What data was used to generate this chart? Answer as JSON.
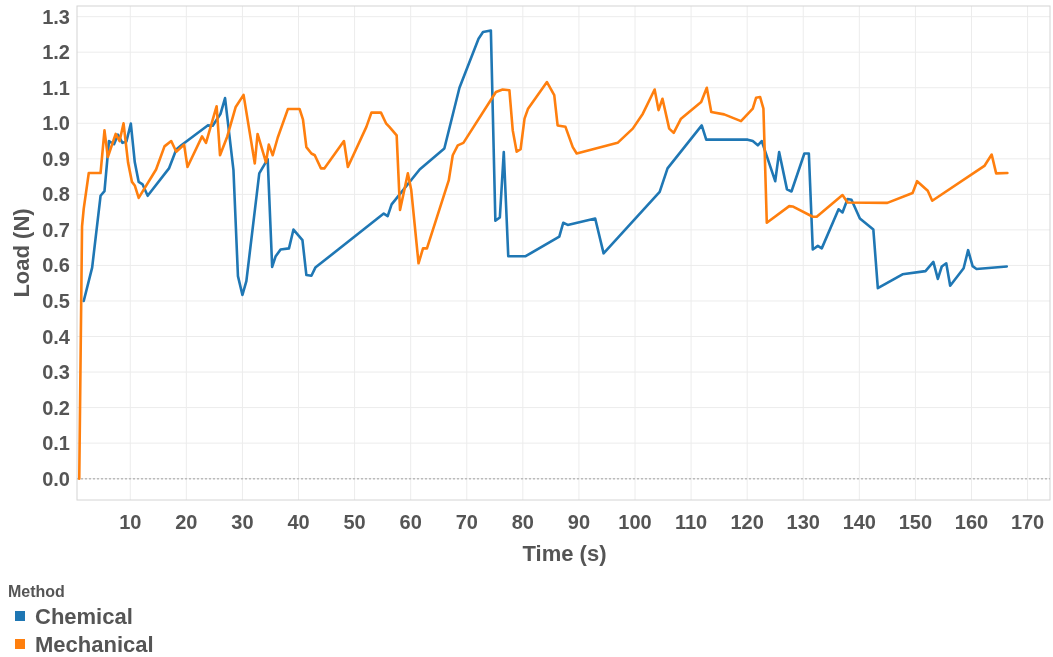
{
  "chart_data": {
    "type": "line",
    "xlabel": "Time (s)",
    "ylabel": "Load (N)",
    "legend_title": "Method",
    "xlim": [
      0.5,
      174
    ],
    "xticks": [
      10,
      20,
      30,
      40,
      50,
      60,
      70,
      80,
      90,
      100,
      110,
      120,
      130,
      140,
      150,
      160,
      170
    ],
    "ylim": [
      -0.06,
      1.33
    ],
    "yticks": [
      {
        "value": 0,
        "label": "0.0"
      },
      0.1,
      0.2,
      0.3,
      0.4,
      0.5,
      0.6,
      0.7,
      0.8,
      0.9,
      {
        "value": 1,
        "label": "1.0"
      },
      1.1,
      1.2,
      1.3
    ],
    "grid": true,
    "legend": "bottom left",
    "line_style": "solid",
    "ref_lines": [
      {
        "axis": "y",
        "value": 0,
        "color": "#bbbbbb",
        "line_style": "dotted"
      }
    ],
    "series": [
      {
        "name": "Chemical",
        "color": "#1f77b4",
        "x": [
          1.7,
          3.2,
          4.7,
          5.4,
          6.2,
          7.1,
          7.8,
          8.6,
          9.3,
          10.1,
          10.8,
          11.5,
          12.2,
          13.1,
          16.9,
          18.2,
          19.1,
          23.8,
          24.7,
          26.1,
          26.9,
          28.4,
          29.2,
          30.0,
          30.7,
          33.0,
          34.5,
          35.3,
          35.9,
          36.8,
          38.3,
          39.1,
          40.7,
          41.4,
          42.3,
          43.0,
          55.2,
          55.9,
          56.6,
          61.6,
          66.0,
          68.7,
          72.1,
          72.9,
          74.3,
          75.1,
          75.9,
          76.6,
          77.4,
          80.5,
          86.5,
          87.2,
          88.0,
          92.9,
          94.4,
          104.4,
          105.8,
          111.9,
          112.7,
          120.1,
          121.0,
          121.9,
          122.6,
          125.0,
          125.7,
          127.1,
          127.9,
          130.2,
          131.0,
          131.7,
          132.6,
          133.3,
          136.3,
          137.0,
          137.9,
          138.6,
          140.1,
          142.5,
          143.3,
          147.7,
          151.8,
          153.2,
          154.0,
          154.7,
          155.5,
          156.2,
          158.6,
          159.4,
          160.2,
          160.9,
          166.3
        ],
        "values": [
          0.5,
          0.594,
          0.796,
          0.809,
          0.95,
          0.941,
          0.968,
          0.945,
          0.948,
          0.999,
          0.891,
          0.835,
          0.828,
          0.796,
          0.873,
          0.926,
          0.938,
          0.994,
          0.993,
          1.027,
          1.071,
          0.868,
          0.57,
          0.517,
          0.556,
          0.859,
          0.899,
          0.596,
          0.625,
          0.645,
          0.648,
          0.701,
          0.671,
          0.573,
          0.571,
          0.594,
          0.746,
          0.739,
          0.772,
          0.87,
          0.929,
          1.1,
          1.238,
          1.257,
          1.261,
          0.726,
          0.735,
          0.919,
          0.626,
          0.626,
          0.681,
          0.72,
          0.714,
          0.732,
          0.634,
          0.807,
          0.873,
          0.994,
          0.954,
          0.954,
          0.95,
          0.938,
          0.95,
          0.837,
          0.919,
          0.814,
          0.808,
          0.915,
          0.915,
          0.645,
          0.655,
          0.648,
          0.758,
          0.749,
          0.787,
          0.785,
          0.732,
          0.701,
          0.536,
          0.575,
          0.584,
          0.61,
          0.562,
          0.597,
          0.606,
          0.543,
          0.592,
          0.643,
          0.598,
          0.59,
          0.597
        ]
      },
      {
        "name": "Mechanical",
        "color": "#ff7f0e",
        "x": [
          0.9,
          1.4,
          1.7,
          2.6,
          4.7,
          5.4,
          6.0,
          7.4,
          8.1,
          8.8,
          9.6,
          10.3,
          10.8,
          11.5,
          14.6,
          16.1,
          17.3,
          18.2,
          19.6,
          20.2,
          22.8,
          23.5,
          25.4,
          26.0,
          27.3,
          28.8,
          30.2,
          32.2,
          32.7,
          34.2,
          34.7,
          35.4,
          36.3,
          38.1,
          40.2,
          40.8,
          41.4,
          42.3,
          42.9,
          44.0,
          44.6,
          48.1,
          48.8,
          52.1,
          53.0,
          54.7,
          55.6,
          56.2,
          57.5,
          58.1,
          59.5,
          60.1,
          61.4,
          62.2,
          62.9,
          66.8,
          67.5,
          68.4,
          69.4,
          75.2,
          76.4,
          77.6,
          78.2,
          78.9,
          79.6,
          80.3,
          80.9,
          84.3,
          85.6,
          86.2,
          87.6,
          88.9,
          89.6,
          96.9,
          99.6,
          101.4,
          103.5,
          104.2,
          104.9,
          106.1,
          106.9,
          108.2,
          111.8,
          112.8,
          113.6,
          115.9,
          118.9,
          121.0,
          121.6,
          122.3,
          122.9,
          123.5,
          127.5,
          128.1,
          131.7,
          132.4,
          137.0,
          137.9,
          145.0,
          149.5,
          150.3,
          152.2,
          153.0,
          162.3,
          163.6,
          164.4,
          166.4
        ],
        "values": [
          0,
          0.71,
          0.76,
          0.86,
          0.86,
          0.98,
          0.905,
          0.97,
          0.95,
          1.0,
          0.89,
          0.835,
          0.825,
          0.79,
          0.87,
          0.935,
          0.95,
          0.92,
          0.94,
          0.877,
          0.963,
          0.945,
          1.048,
          0.91,
          0.963,
          1.046,
          1.08,
          0.887,
          0.97,
          0.89,
          0.94,
          0.91,
          0.96,
          1.04,
          1.04,
          1.01,
          0.933,
          0.915,
          0.91,
          0.873,
          0.873,
          0.95,
          0.877,
          0.99,
          1.03,
          1.03,
          1.0,
          0.99,
          0.966,
          0.756,
          0.859,
          0.812,
          0.606,
          0.648,
          0.648,
          0.84,
          0.91,
          0.938,
          0.945,
          1.088,
          1.095,
          1.093,
          0.98,
          0.92,
          0.927,
          1.013,
          1.04,
          1.116,
          1.079,
          0.994,
          0.99,
          0.933,
          0.915,
          0.945,
          0.985,
          1.027,
          1.095,
          1.037,
          1.069,
          0.985,
          0.973,
          1.013,
          1.06,
          1.1,
          1.032,
          1.025,
          1.006,
          1.041,
          1.072,
          1.074,
          1.041,
          0.72,
          0.767,
          0.766,
          0.737,
          0.737,
          0.798,
          0.777,
          0.776,
          0.804,
          0.837,
          0.81,
          0.782,
          0.88,
          0.912,
          0.859,
          0.86
        ]
      }
    ]
  }
}
